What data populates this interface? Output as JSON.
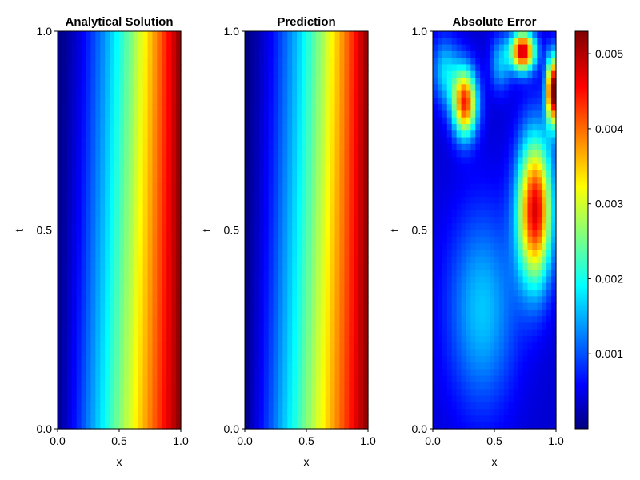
{
  "chart_data": [
    {
      "type": "heatmap",
      "title": "Analytical Solution",
      "xlabel": "x",
      "ylabel": "t",
      "xlim": [
        0.0,
        1.0
      ],
      "ylim": [
        0.0,
        1.0
      ],
      "xticks": [
        "0.0",
        "0.5",
        "1.0"
      ],
      "yticks": [
        "0.0",
        "0.5",
        "1.0"
      ],
      "colormap": "jet",
      "grid": false,
      "field": "value increases with x (dark blue at x=0 to dark red at x=1); iso-lines bend toward larger x as t increases"
    },
    {
      "type": "heatmap",
      "title": "Prediction",
      "xlabel": "x",
      "ylabel": "t",
      "xlim": [
        0.0,
        1.0
      ],
      "ylim": [
        0.0,
        1.0
      ],
      "xticks": [
        "0.0",
        "0.5",
        "1.0"
      ],
      "yticks": [
        "0.0",
        "0.5",
        "1.0"
      ],
      "colormap": "jet",
      "grid": false
    },
    {
      "type": "heatmap",
      "title": "Absolute Error",
      "xlabel": "x",
      "ylabel": "t",
      "xlim": [
        0.0,
        1.0
      ],
      "ylim": [
        0.0,
        1.0
      ],
      "xticks": [
        "0.0",
        "0.5",
        "1.0"
      ],
      "yticks": [
        "0.0",
        "0.5",
        "1.0"
      ],
      "colormap": "jet",
      "grid": false,
      "colorbar": {
        "range": [
          0.0,
          0.0053
        ],
        "ticks": [
          "0.001",
          "0.002",
          "0.003",
          "0.004",
          "0.005"
        ],
        "tick_values": [
          0.001,
          0.002,
          0.003,
          0.004,
          0.005
        ]
      },
      "hotspots": [
        {
          "x": 0.83,
          "t": 0.55,
          "value": 0.0043
        },
        {
          "x": 0.73,
          "t": 0.95,
          "value": 0.0045
        },
        {
          "x": 0.26,
          "t": 0.82,
          "value": 0.004
        },
        {
          "x": 0.98,
          "t": 0.85,
          "value": 0.005
        },
        {
          "x": 0.4,
          "t": 0.3,
          "value": 0.0013
        }
      ]
    }
  ],
  "colors": {
    "jet": [
      "#00007f",
      "#0000ff",
      "#007fff",
      "#00ffff",
      "#7fff7f",
      "#ffff00",
      "#ff7f00",
      "#ff0000",
      "#7f0000"
    ]
  }
}
